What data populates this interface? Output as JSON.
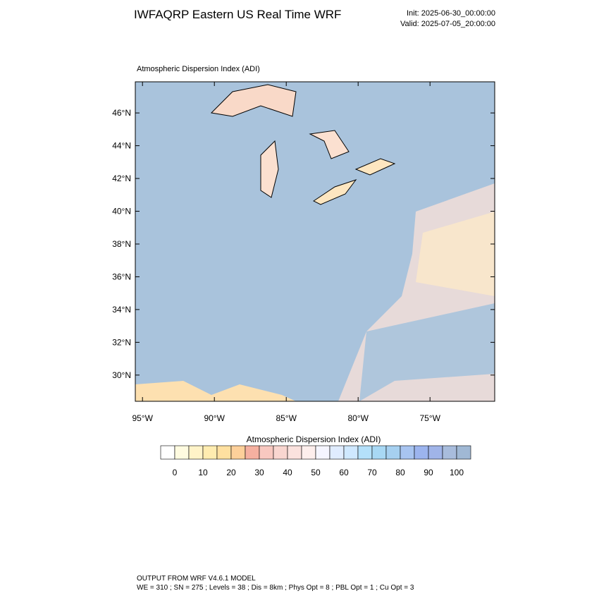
{
  "header": {
    "title": "IWFAQRP Eastern US Real Time WRF",
    "init": "Init: 2025-06-30_00:00:00",
    "valid": "Valid: 2025-07-05_20:00:00"
  },
  "map": {
    "title": "Atmospheric Dispersion Index   (ADI)",
    "xlim": [
      -95.5,
      -70.5
    ],
    "ylim": [
      28.4,
      47.9
    ],
    "xticks": [
      {
        "value": -95,
        "label": "95°W"
      },
      {
        "value": -90,
        "label": "90°W"
      },
      {
        "value": -85,
        "label": "85°W"
      },
      {
        "value": -80,
        "label": "80°W"
      },
      {
        "value": -75,
        "label": "75°W"
      }
    ],
    "yticks": [
      {
        "value": 30,
        "label": "30°N"
      },
      {
        "value": 32,
        "label": "32°N"
      },
      {
        "value": 34,
        "label": "34°N"
      },
      {
        "value": 36,
        "label": "36°N"
      },
      {
        "value": 38,
        "label": "38°N"
      },
      {
        "value": 40,
        "label": "40°N"
      },
      {
        "value": 42,
        "label": "42°N"
      },
      {
        "value": 44,
        "label": "44°N"
      },
      {
        "value": 46,
        "label": "46°N"
      }
    ]
  },
  "colorbar": {
    "title": "Atmospheric Dispersion Index  (ADI)",
    "ticks": [
      0,
      10,
      20,
      30,
      40,
      50,
      60,
      70,
      80,
      90,
      100
    ],
    "colors": [
      "#ffffff",
      "#fffbe0",
      "#fff3c8",
      "#ffecb0",
      "#ffe0a0",
      "#fdd09a",
      "#f5b0a0",
      "#f8c8c0",
      "#f9d6d0",
      "#fbe2de",
      "#fdeeec",
      "#f5f5ff",
      "#e0ecff",
      "#cfe8ff",
      "#b4e0fa",
      "#a8d8f4",
      "#a6d0f0",
      "#a8c4f0",
      "#9cb4ee",
      "#a0b4e8",
      "#a8bcdc",
      "#a0b8d4"
    ]
  },
  "footer": {
    "line1": "OUTPUT FROM WRF V4.6.1 MODEL",
    "line2": "WE = 310 ; SN = 275 ; Levels = 38 ; Dis = 8km ; Phys Opt = 8 ; PBL Opt = 1 ; Cu Opt = 3"
  }
}
